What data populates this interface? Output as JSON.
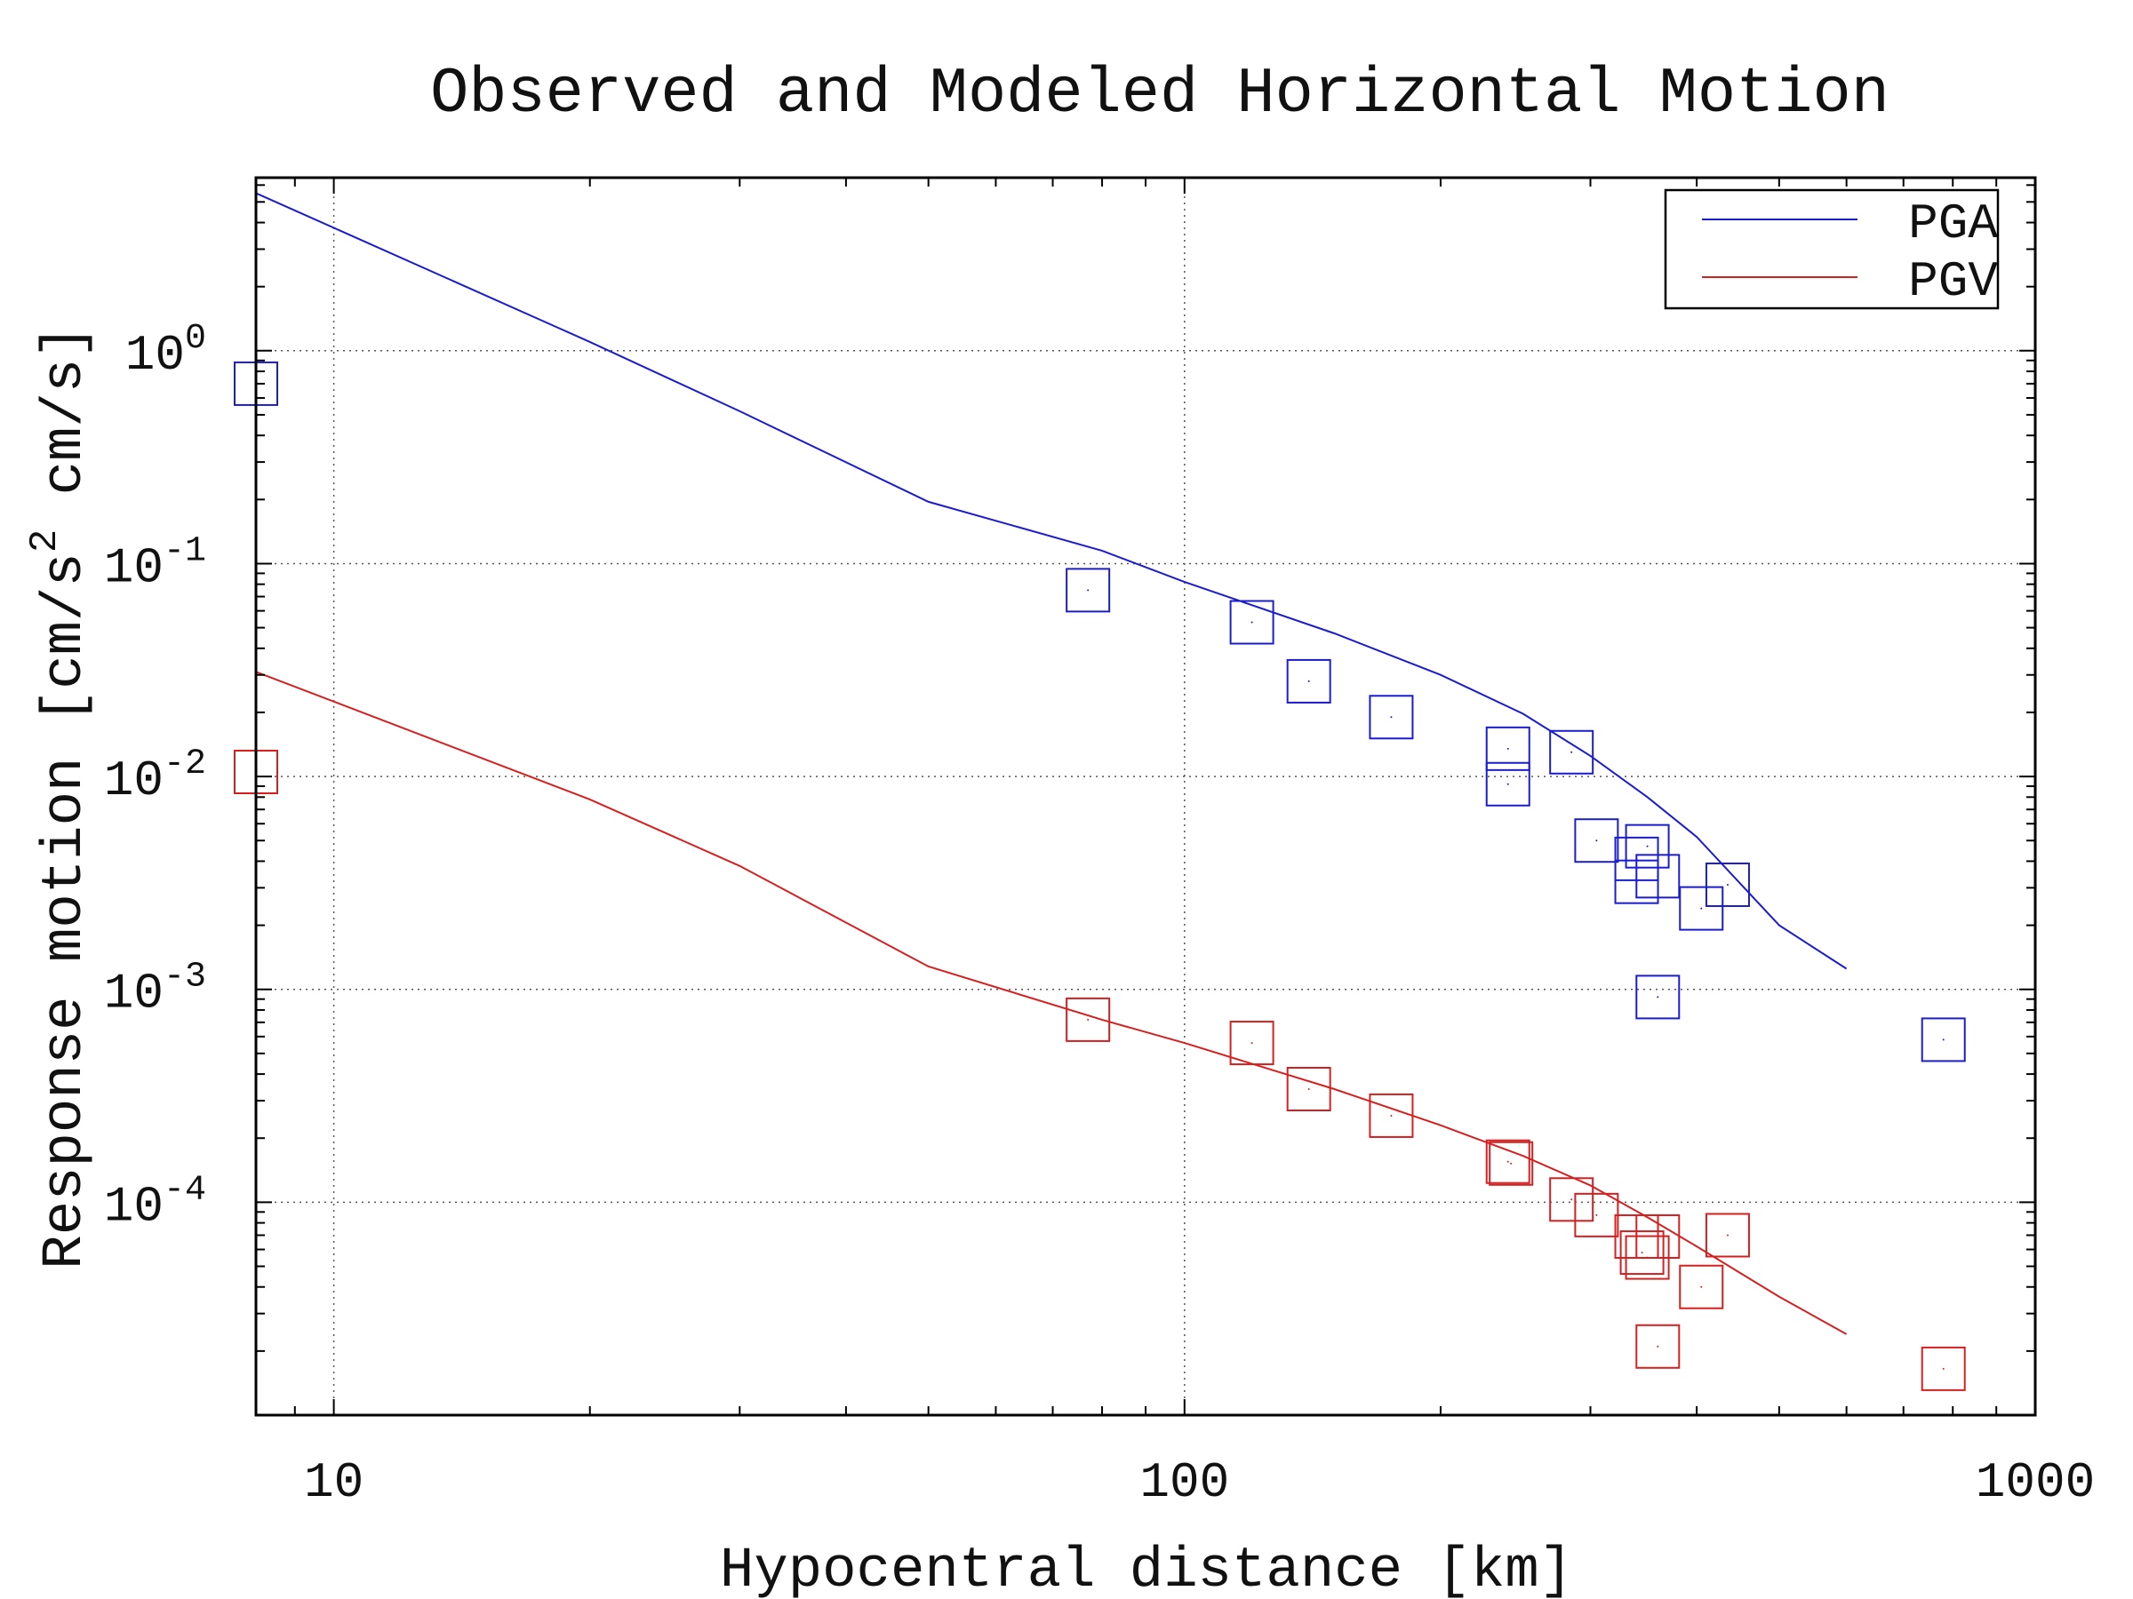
{
  "chart_data": {
    "type": "scatter",
    "title": "Observed and Modeled Horizontal Motion",
    "xlabel": "Hypocentral distance [km]",
    "ylabel_parts": {
      "p1": "Response motion [cm/s",
      "p2": "2",
      "p3": " cm/s]"
    },
    "x_scale": "log",
    "y_scale": "log",
    "xlim": [
      8.1,
      1000
    ],
    "ylim": [
      1e-05,
      6.5
    ],
    "x_ticks": [
      {
        "value": 10,
        "label": "10"
      },
      {
        "value": 100,
        "label": "100"
      },
      {
        "value": 1000,
        "label": "1000"
      }
    ],
    "y_ticks": [
      {
        "value": 1,
        "base": "10",
        "exp": "0"
      },
      {
        "value": 0.1,
        "base": "10",
        "exp": "-1"
      },
      {
        "value": 0.01,
        "base": "10",
        "exp": "-2"
      },
      {
        "value": 0.001,
        "base": "10",
        "exp": "-3"
      },
      {
        "value": 0.0001,
        "base": "10",
        "exp": "-4"
      }
    ],
    "grid": true,
    "legend_position": "top-right",
    "series": [
      {
        "name": "PGA",
        "color": "#1c1ccf",
        "model_line": {
          "x": [
            8.1,
            20,
            30,
            50,
            80,
            100,
            150,
            200,
            250,
            300,
            350,
            400,
            500,
            600
          ],
          "y": [
            5.5,
            1.1,
            0.52,
            0.195,
            0.115,
            0.082,
            0.047,
            0.03,
            0.0197,
            0.0125,
            0.008,
            0.0052,
            0.002,
            0.00125
          ]
        },
        "observed": {
          "x": [
            8.1,
            77,
            120,
            140,
            175,
            240,
            240,
            285,
            305,
            340,
            340,
            350,
            360,
            405,
            435,
            360,
            780
          ],
          "y": [
            0.7,
            0.075,
            0.053,
            0.028,
            0.019,
            0.0135,
            0.0092,
            0.013,
            0.005,
            0.0041,
            0.0032,
            0.0047,
            0.0034,
            0.0024,
            0.0031,
            0.00092,
            0.00058
          ]
        }
      },
      {
        "name": "PGV",
        "color": "#d62020",
        "model_line": {
          "x": [
            8.1,
            20,
            30,
            50,
            80,
            100,
            150,
            200,
            250,
            300,
            350,
            400,
            500,
            600
          ],
          "y": [
            0.031,
            0.0078,
            0.0038,
            0.00128,
            0.00072,
            0.00056,
            0.00034,
            0.00023,
            0.000165,
            0.00012,
            8.5e-05,
            6.2e-05,
            3.6e-05,
            2.4e-05
          ]
        },
        "observed": {
          "x": [
            8.1,
            77,
            120,
            140,
            175,
            240,
            242,
            285,
            305,
            340,
            345,
            350,
            360,
            405,
            435,
            360,
            780
          ],
          "y": [
            0.0105,
            0.00072,
            0.00056,
            0.00034,
            0.000255,
            0.000155,
            0.000152,
            0.000103,
            8.7e-05,
            6.9e-05,
            5.8e-05,
            5.5e-05,
            6.9e-05,
            4e-05,
            7e-05,
            2.1e-05,
            1.65e-05
          ]
        }
      }
    ]
  }
}
